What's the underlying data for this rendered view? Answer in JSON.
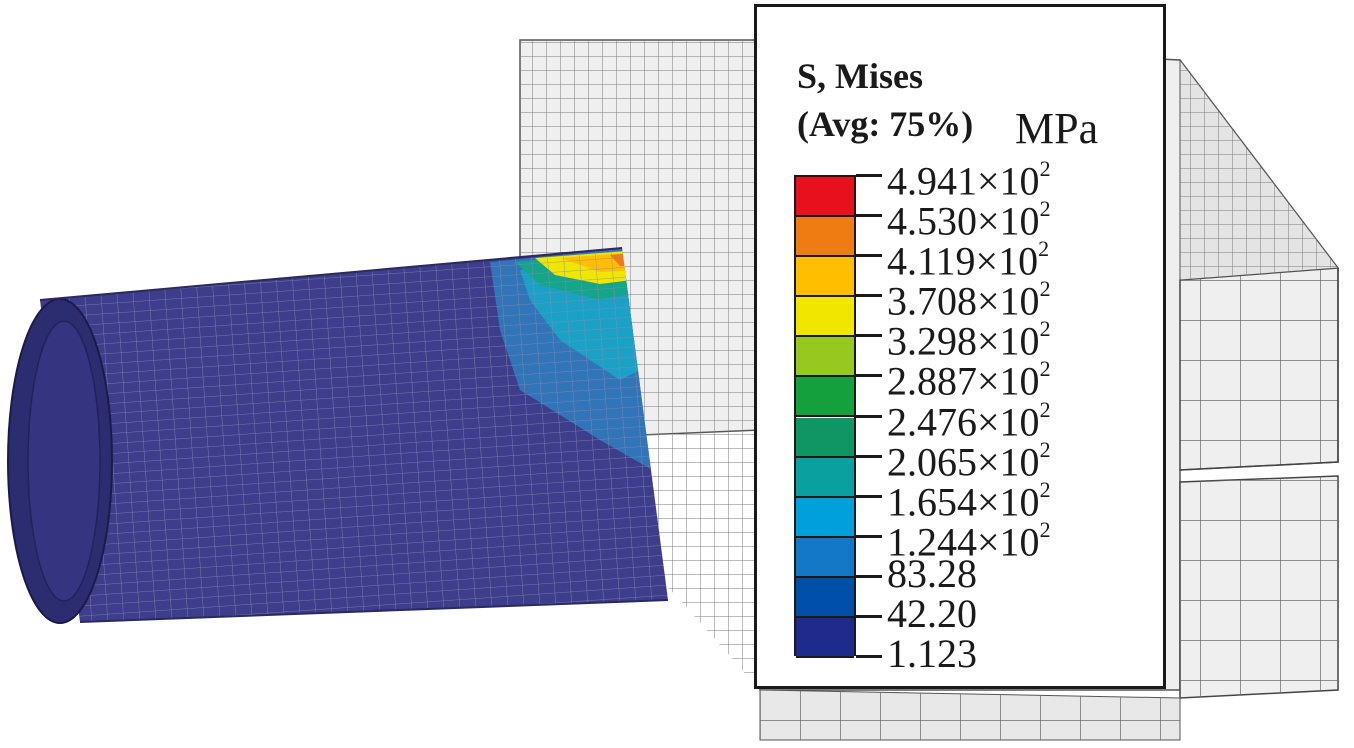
{
  "legend": {
    "title": "S, Mises",
    "subtitle": "(Avg: 75%)",
    "unit": "MPa",
    "colors": [
      "#e8101c",
      "#ee7c12",
      "#ffbe00",
      "#f0e600",
      "#96c81e",
      "#14a03c",
      "#0f9664",
      "#0aa0a0",
      "#00a0dc",
      "#1478c8",
      "#0050aa",
      "#1e2a8c"
    ],
    "ticks": [
      {
        "mantissa": "4.941",
        "times": "×10",
        "exp": "2"
      },
      {
        "mantissa": "4.530",
        "times": "×10",
        "exp": "2"
      },
      {
        "mantissa": "4.119",
        "times": "×10",
        "exp": "2"
      },
      {
        "mantissa": "3.708",
        "times": "×10",
        "exp": "2"
      },
      {
        "mantissa": "3.298",
        "times": "×10",
        "exp": "2"
      },
      {
        "mantissa": "2.887",
        "times": "×10",
        "exp": "2"
      },
      {
        "mantissa": "2.476",
        "times": "×10",
        "exp": "2"
      },
      {
        "mantissa": "2.065",
        "times": "×10",
        "exp": "2"
      },
      {
        "mantissa": "1.654",
        "times": "×10",
        "exp": "2"
      },
      {
        "mantissa": "1.244",
        "times": "×10",
        "exp": "2"
      },
      {
        "mantissa": "83.28",
        "times": "",
        "exp": ""
      },
      {
        "mantissa": "42.20",
        "times": "",
        "exp": ""
      },
      {
        "mantissa": "1.123",
        "times": "",
        "exp": ""
      }
    ]
  },
  "model": {
    "pipe_base_color": "#3d3d8c",
    "block_color": "#efefef",
    "mesh_line_color": "#6e6e6e"
  }
}
